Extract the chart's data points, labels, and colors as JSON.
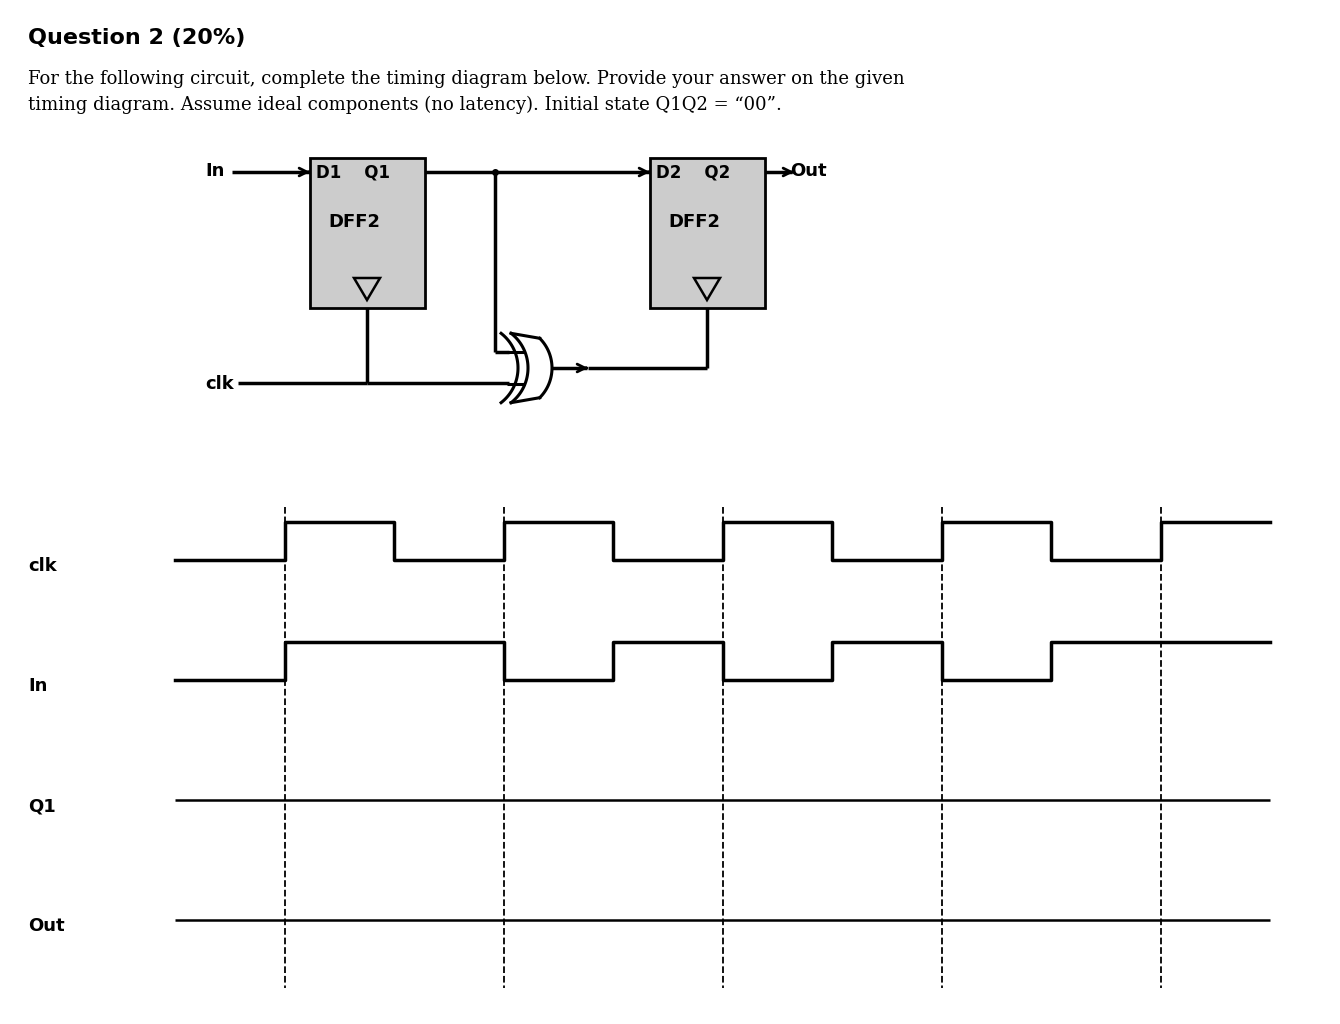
{
  "title": "Question 2 (20%)",
  "desc1": "For the following circuit, complete the timing diagram below. Provide your answer on the given",
  "desc2": "timing diagram. Assume ideal components (no latency). Initial state Q1Q2 = “00”.",
  "bg_color": "#ffffff",
  "text_color": "#000000",
  "dff_fill": "#cccccc",
  "clk_times": [
    0,
    1,
    1,
    2,
    2,
    3,
    3,
    4,
    4,
    5,
    5,
    6,
    6,
    7,
    7,
    8,
    8,
    9,
    9,
    10
  ],
  "clk_vals": [
    0,
    0,
    1,
    1,
    0,
    0,
    1,
    1,
    0,
    0,
    1,
    1,
    0,
    0,
    1,
    1,
    0,
    0,
    1,
    1
  ],
  "in_times": [
    0,
    1,
    1,
    3,
    3,
    4,
    4,
    5,
    5,
    6,
    6,
    7,
    7,
    8,
    8,
    10
  ],
  "in_vals": [
    0,
    0,
    1,
    1,
    0,
    0,
    1,
    1,
    0,
    0,
    1,
    1,
    0,
    0,
    1,
    1
  ],
  "dashed_x": [
    1,
    3,
    5,
    7,
    9
  ],
  "signal_labels": [
    "clk",
    "In",
    "Q1",
    "Out"
  ]
}
